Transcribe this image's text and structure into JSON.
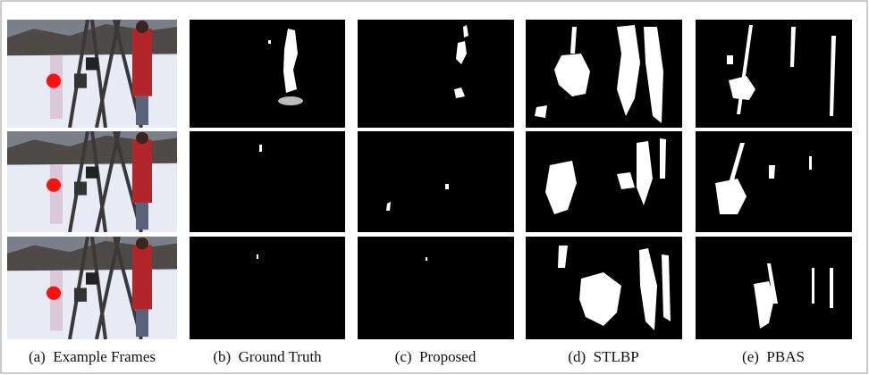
{
  "figure": {
    "captions": [
      "(a)  Example Frames",
      "(b)  Ground Truth",
      "(c)  Proposed",
      "(d)  STLBP",
      "(e)  PBAS"
    ]
  }
}
